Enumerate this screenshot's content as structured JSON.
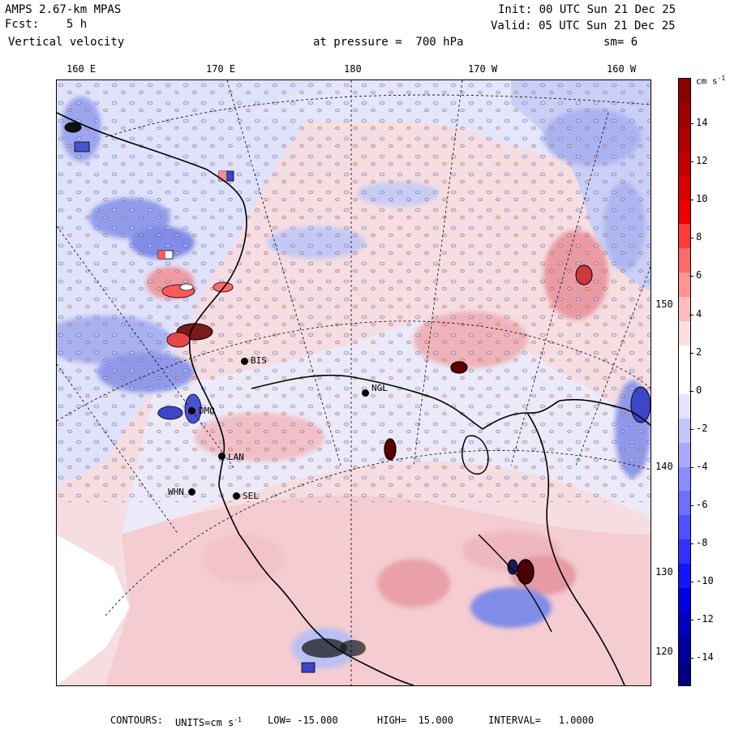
{
  "header": {
    "line1_left": "AMPS 2.67-km MPAS",
    "line2_left": "Fcst:    5 h",
    "line3_left": "Vertical velocity",
    "line1_right": "Init: 00 UTC Sun 21 Dec 25",
    "line2_right": "Valid: 05 UTC Sun 21 Dec 25",
    "pressure": "at pressure =  700 hPa",
    "smooth": "sm= 6"
  },
  "longitude_labels": [
    "160 E",
    "170 E",
    "180",
    "170 W",
    "160 W"
  ],
  "latitude_labels": [
    "150 W",
    "140 W",
    "130 W",
    "120 W"
  ],
  "stations": [
    "BIS",
    "NGL",
    "DMO",
    "LAN",
    "WHN",
    "SEL"
  ],
  "colorbar": {
    "units": "cm s",
    "units_sup": "-1",
    "labels": [
      "14",
      "12",
      "10",
      "8",
      "6",
      "4",
      "2",
      "0",
      "-2",
      "-4",
      "-6",
      "-8",
      "-10",
      "-12",
      "-14"
    ],
    "colors": [
      "#8b0000",
      "#a00000",
      "#b20000",
      "#c40000",
      "#d80000",
      "#ee0000",
      "#ff3b3b",
      "#ff6a6a",
      "#ff9494",
      "#ffbcbc",
      "#ffdede",
      "#ffffff",
      "#ffffff",
      "#e3e3ff",
      "#c6c6ff",
      "#a8a8ff",
      "#8c8cff",
      "#6e6eff",
      "#5050ff",
      "#3232ff",
      "#1414ff",
      "#0000e0",
      "#0000c0",
      "#0000a0",
      "#000080"
    ]
  },
  "footer": {
    "contours_label": "CONTOURS:",
    "units_label": "UNITS=cm s",
    "units_sup": "-1",
    "low": "LOW= -15.000",
    "high": "HIGH=  15.000",
    "interval": "INTERVAL=   1.0000"
  },
  "palette": {
    "positive_light": "#f7d0d4",
    "negative_light": "#d7dcfa",
    "positive_mid": "#ee9aa2",
    "negative_mid": "#8f9cec",
    "coast": "#000000"
  }
}
